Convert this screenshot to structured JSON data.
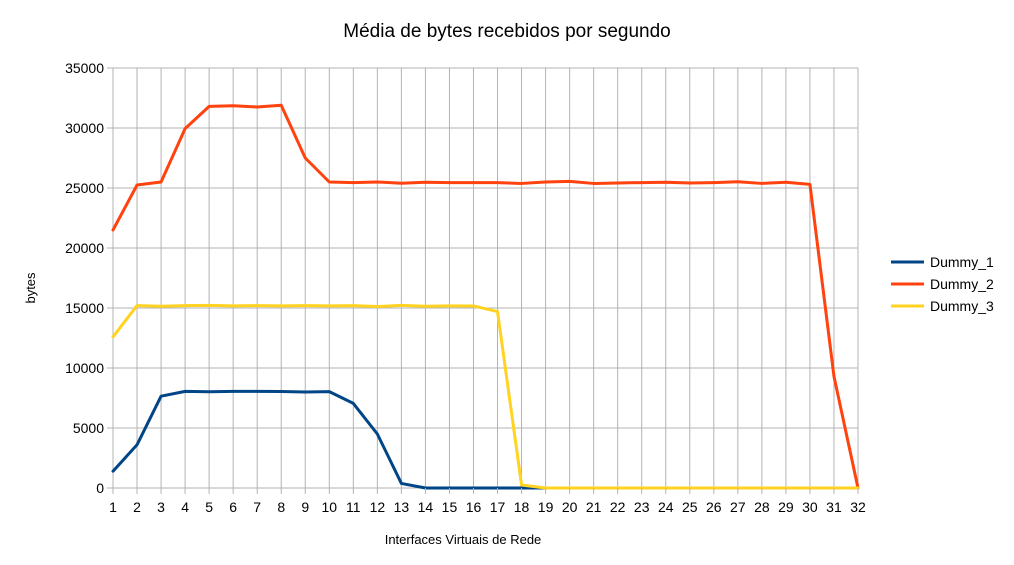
{
  "chart_data": {
    "type": "line",
    "title": "Média de bytes recebidos por segundo",
    "xlabel": "Interfaces Virtuais de Rede",
    "ylabel": "bytes",
    "ylim": [
      0,
      35000
    ],
    "yticks": [
      0,
      5000,
      10000,
      15000,
      20000,
      25000,
      30000,
      35000
    ],
    "x": [
      1,
      2,
      3,
      4,
      5,
      6,
      7,
      8,
      9,
      10,
      11,
      12,
      13,
      14,
      15,
      16,
      17,
      18,
      19,
      20,
      21,
      22,
      23,
      24,
      25,
      26,
      27,
      28,
      29,
      30,
      31,
      32
    ],
    "grid": true,
    "legend": "right",
    "series": [
      {
        "name": "Dummy_1",
        "color": "#004586",
        "values": [
          1400,
          3600,
          7650,
          8050,
          8020,
          8050,
          8050,
          8040,
          8000,
          8030,
          7050,
          4500,
          380,
          0,
          0,
          0,
          0,
          0,
          0,
          0,
          0,
          0,
          0,
          0,
          0,
          0,
          0,
          0,
          0,
          0,
          0,
          0
        ]
      },
      {
        "name": "Dummy_2",
        "color": "#ff420e",
        "values": [
          21500,
          25250,
          25500,
          29950,
          31800,
          31850,
          31750,
          31900,
          27500,
          25500,
          25450,
          25500,
          25400,
          25480,
          25450,
          25450,
          25450,
          25380,
          25500,
          25550,
          25380,
          25420,
          25450,
          25480,
          25420,
          25450,
          25520,
          25380,
          25480,
          25300,
          9300,
          0
        ]
      },
      {
        "name": "Dummy_3",
        "color": "#ffd320",
        "values": [
          12600,
          15200,
          15150,
          15200,
          15220,
          15180,
          15200,
          15180,
          15200,
          15180,
          15200,
          15120,
          15220,
          15150,
          15180,
          15170,
          14700,
          250,
          0,
          0,
          0,
          0,
          0,
          0,
          0,
          0,
          0,
          0,
          0,
          0,
          0,
          0
        ]
      }
    ]
  }
}
